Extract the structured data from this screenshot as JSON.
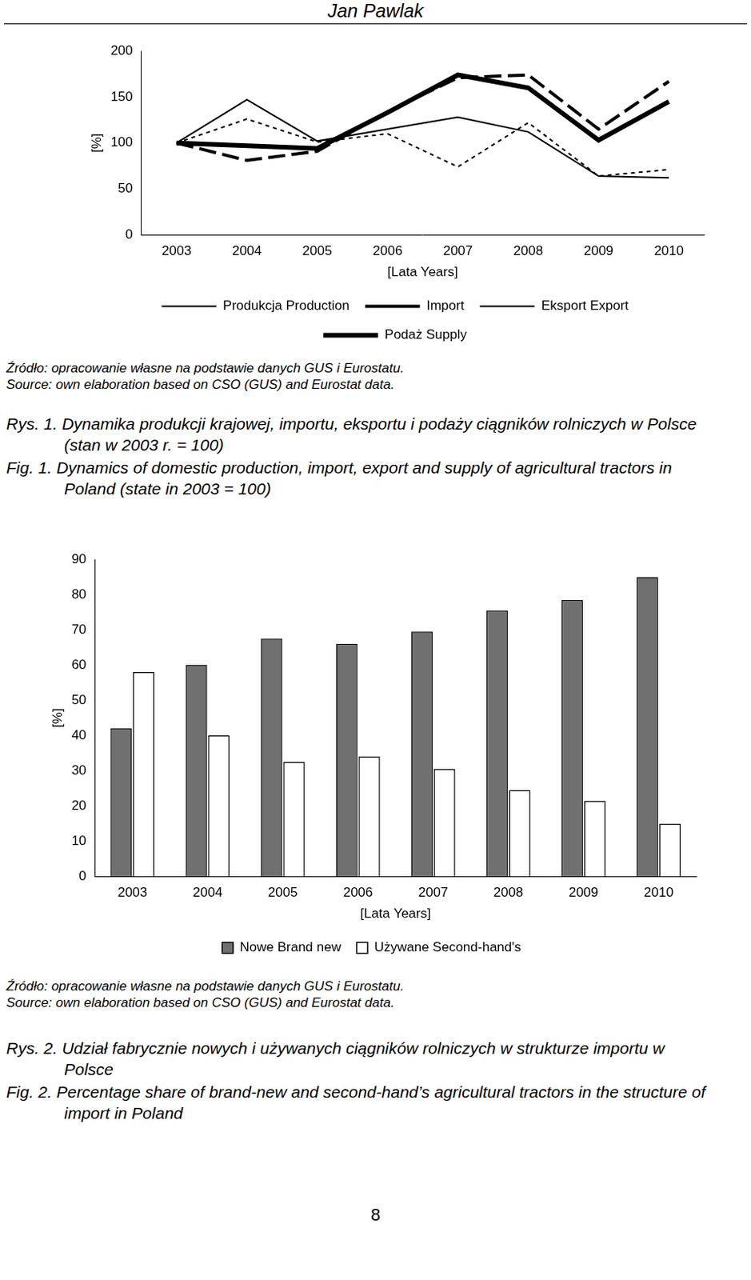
{
  "header": "Jan Pawlak",
  "chart_data": [
    {
      "type": "line",
      "x_label": "[Lata Years]",
      "y_label": "[%]",
      "categories": [
        "2003",
        "2004",
        "2005",
        "2006",
        "2007",
        "2008",
        "2009",
        "2010"
      ],
      "series": [
        {
          "name": "Produkcja Production",
          "color": "#000000",
          "line_style": "solid",
          "values": [
            100,
            147,
            102,
            115,
            128,
            112,
            64,
            62
          ]
        },
        {
          "name": "Import",
          "color": "#000000",
          "line_style": "long_dash",
          "values": [
            100,
            81,
            91,
            134,
            171,
            174,
            115,
            167
          ]
        },
        {
          "name": "Eksport Export",
          "color": "#000000",
          "line_style": "short_dash",
          "values": [
            100,
            126,
            101,
            110,
            74,
            122,
            64,
            71
          ]
        },
        {
          "name": "Podaż Supply",
          "color": "#000000",
          "line_style": "thick",
          "values": [
            100,
            97,
            94,
            133,
            174,
            160,
            103,
            145
          ]
        }
      ],
      "ylim": [
        0,
        200
      ],
      "yticks": [
        0,
        50,
        100,
        150,
        200
      ],
      "grid": false,
      "legend": "bottom"
    },
    {
      "type": "bar",
      "x_label": "[Lata Years]",
      "y_label": "[%]",
      "categories": [
        "2003",
        "2004",
        "2005",
        "2006",
        "2007",
        "2008",
        "2009",
        "2010"
      ],
      "series": [
        {
          "name": "Nowe Brand new",
          "color": "#707070",
          "values": [
            42,
            60,
            67.5,
            66,
            69.5,
            75.5,
            78.5,
            85
          ]
        },
        {
          "name": "Używane Second-hand's",
          "color": "#ffffff",
          "values": [
            58,
            40,
            32.5,
            34,
            30.5,
            24.5,
            21.5,
            15
          ]
        }
      ],
      "ylim": [
        0,
        90
      ],
      "yticks": [
        0,
        10,
        20,
        30,
        40,
        50,
        60,
        70,
        80,
        90
      ],
      "grid": false,
      "legend": "bottom"
    }
  ],
  "sources": [
    [
      "Źródło: opracowanie własne na podstawie danych GUS i Eurostatu.",
      "Source: own elaboration based on CSO (GUS) and Eurostat data."
    ],
    [
      "Źródło: opracowanie własne na podstawie danych GUS i Eurostatu.",
      "Source: own elaboration based on CSO (GUS) and Eurostat data."
    ]
  ],
  "captions": [
    [
      "Rys. 1. Dynamika produkcji krajowej, importu, eksportu i podaży ciągników rolniczych w Polsce (stan w 2003 r. = 100)",
      "Fig. 1. Dynamics of domestic production, import, export and supply of agricultural tractors in Poland (state in 2003 = 100)"
    ],
    [
      "Rys. 2. Udział fabrycznie nowych i używanych ciągników rolniczych w strukturze importu w Polsce",
      "Fig. 2. Percentage share of brand-new and second-hand’s agricultural tractors in the structure of import in Poland"
    ]
  ],
  "page_number": "8"
}
